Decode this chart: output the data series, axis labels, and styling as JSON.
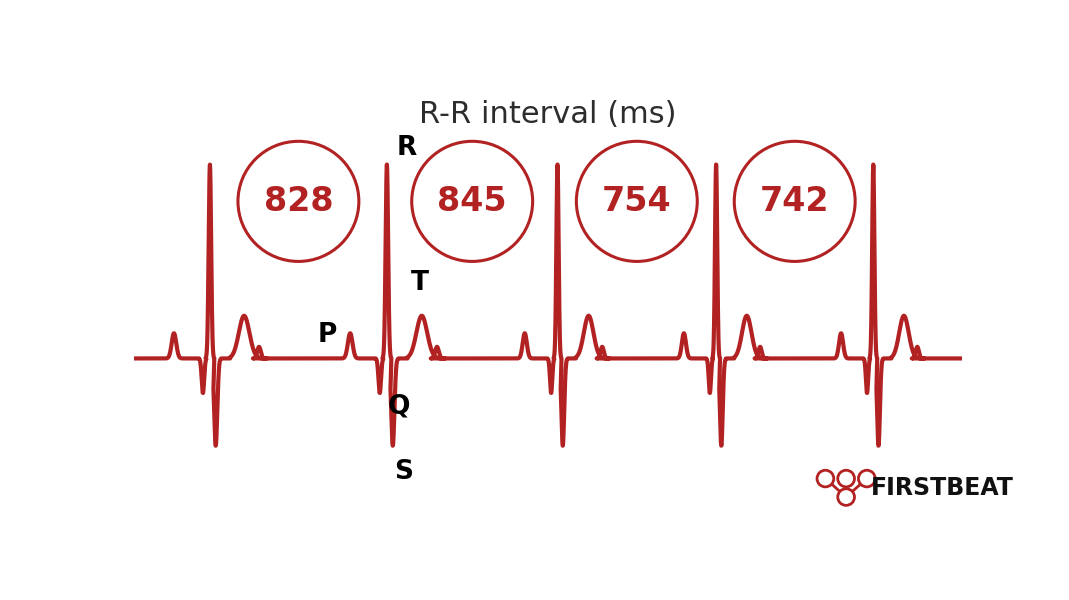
{
  "title": "R-R interval (ms)",
  "title_fontsize": 22,
  "title_color": "#2d2d2d",
  "ecg_color": "#b22222",
  "ecg_linewidth": 3.0,
  "background_color": "#ffffff",
  "circle_color": "#b22222",
  "circle_linewidth": 2.2,
  "rr_values": [
    "828",
    "845",
    "754",
    "742"
  ],
  "rr_fontsize": 24,
  "label_P": "P",
  "label_Q": "Q",
  "label_R": "R",
  "label_S": "S",
  "label_T": "T",
  "label_fontsize": 19,
  "label_fontweight": "bold",
  "firstbeat_text": "FIRSTBEAT",
  "firstbeat_fontsize": 17,
  "firstbeat_color": "#111111",
  "logo_node_color": "#b22222"
}
